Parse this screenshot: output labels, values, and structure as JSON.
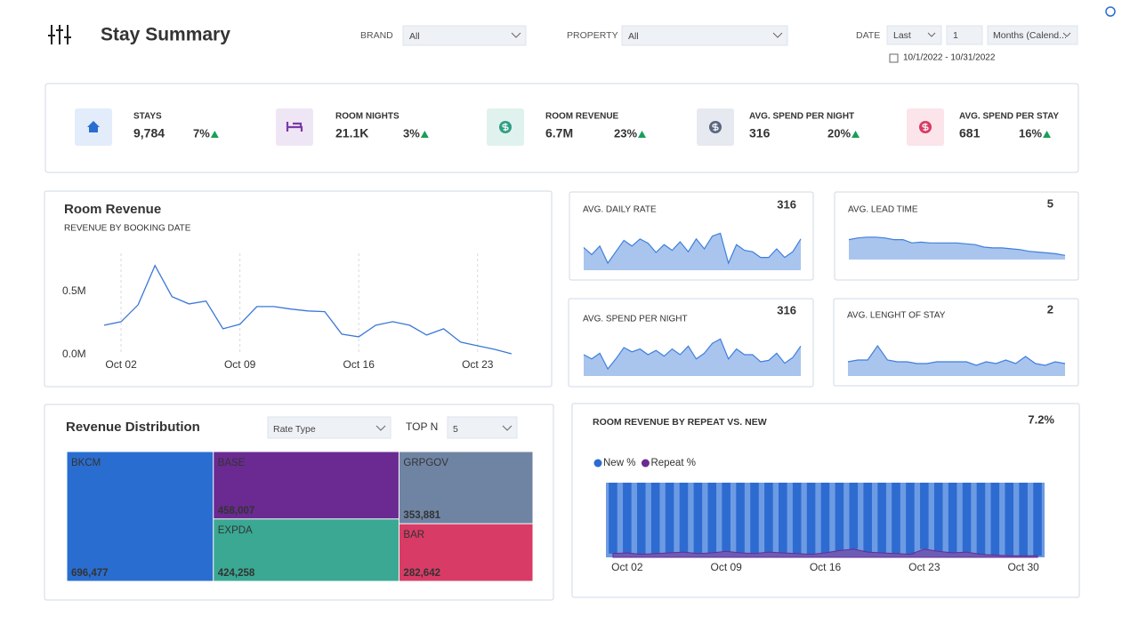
{
  "header": {
    "title": "Stay Summary"
  },
  "filters": {
    "brand": {
      "label": "BRAND",
      "value": "All"
    },
    "property": {
      "label": "PROPERTY",
      "value": "All"
    },
    "date": {
      "label": "DATE",
      "period": "Last",
      "count": 1,
      "unit": "Months (Calend...",
      "range": "10/1/2022 - 10/31/2022"
    }
  },
  "kpis": [
    {
      "label": "STAYS",
      "value": "9,784",
      "change": "7%"
    },
    {
      "label": "ROOM NIGHTS",
      "value": "21.1K",
      "change": "3%"
    },
    {
      "label": "ROOM REVENUE",
      "value": "6.7M",
      "change": "23%"
    },
    {
      "label": "AVG. SPEND PER NIGHT",
      "value": "316",
      "change": "20%"
    },
    {
      "label": "AVG. SPEND PER STAY",
      "value": "681",
      "change": "16%"
    }
  ],
  "chart_data": [
    {
      "type": "line",
      "title": "Room Revenue",
      "subtitle": "REVENUE BY BOOKING DATE",
      "color": "#3a78d6",
      "x_grid": true,
      "categories": [
        null,
        "Oct 02",
        null,
        null,
        null,
        null,
        null,
        null,
        "Oct 09",
        null,
        null,
        null,
        null,
        null,
        null,
        "Oct 16",
        null,
        null,
        null,
        null,
        null,
        null,
        "Oct 23",
        null,
        null
      ],
      "values": [
        232000,
        260000,
        394000,
        704000,
        458000,
        401000,
        423000,
        204000,
        240000,
        380000,
        380000,
        360000,
        345000,
        340000,
        162000,
        141000,
        232000,
        260000,
        232000,
        155000,
        204000,
        99000,
        70000,
        42000,
        7000
      ],
      "ylim": [
        0,
        800000
      ],
      "yticks": [
        {
          "value": 0,
          "label": "0.0M"
        },
        {
          "value": 500000,
          "label": "0.5M"
        }
      ]
    },
    {
      "type": "sparkline",
      "title": "AVG. DAILY RATE",
      "summary": 316,
      "color": "#3f7fdc",
      "fill": "#a9c5ee",
      "ylim": [
        150,
        450
      ],
      "values": [
        310,
        260,
        320,
        200,
        280,
        360,
        320,
        370,
        340,
        275,
        330,
        290,
        350,
        280,
        370,
        300,
        390,
        410,
        200,
        330,
        290,
        280,
        240,
        240,
        300,
        240,
        280,
        370
      ]
    },
    {
      "type": "sparkline",
      "title": "AVG. LEAD TIME",
      "summary": 5,
      "color": "#3f7fdc",
      "fill": "#a9c5ee",
      "ylim": [
        3,
        6
      ],
      "values": [
        5.4,
        5.6,
        5.7,
        5.7,
        5.6,
        5.4,
        5.4,
        5.0,
        5.1,
        5.0,
        5.0,
        5.0,
        5.0,
        4.9,
        4.8,
        4.5,
        4.4,
        4.4,
        4.3,
        4.2,
        4.0,
        3.9,
        3.8,
        3.7,
        3.5
      ]
    },
    {
      "type": "sparkline",
      "title": "AVG. SPEND PER NIGHT",
      "summary": 316,
      "color": "#3f7fdc",
      "fill": "#a9c5ee",
      "ylim": [
        150,
        450
      ],
      "values": [
        300,
        270,
        310,
        200,
        270,
        350,
        320,
        340,
        300,
        330,
        290,
        340,
        300,
        360,
        270,
        310,
        380,
        410,
        270,
        340,
        300,
        300,
        250,
        260,
        310,
        240,
        280,
        360
      ]
    },
    {
      "type": "sparkline",
      "title": "AVG. LENGHT OF STAY",
      "summary": 2,
      "color": "#3f7fdc",
      "fill": "#a9c5ee",
      "ylim": [
        1.5,
        3.5
      ],
      "values": [
        2.3,
        2.4,
        2.4,
        3.2,
        2.4,
        2.3,
        2.3,
        2.2,
        2.2,
        2.3,
        2.3,
        2.3,
        2.3,
        2.1,
        2.3,
        2.2,
        2.4,
        2.2,
        2.6,
        2.2,
        2.1,
        2.3,
        2.2
      ]
    },
    {
      "type": "treemap",
      "title": "Revenue Distribution",
      "controls": {
        "group": "Rate Type",
        "top_n_label": "TOP N",
        "top_n": 5
      },
      "categories": [
        "BKCM",
        "BASE",
        "EXPDA",
        "GRPGOV",
        "BAR"
      ],
      "values": [
        696477,
        458007,
        424258,
        353881,
        282642
      ],
      "value_labels": [
        "696,477",
        "458,007",
        "424,258",
        "353,881",
        "282,642"
      ],
      "colors": [
        "#2a6dd0",
        "#6a2a91",
        "#3aa893",
        "#6f84a3",
        "#d83b65"
      ]
    },
    {
      "type": "stacked_bar",
      "title": "ROOM REVENUE BY REPEAT VS. NEW",
      "summary": "7.2%",
      "ylim": [
        0,
        100
      ],
      "categories": [
        null,
        "Oct 02",
        null,
        null,
        null,
        null,
        null,
        null,
        "Oct 09",
        null,
        null,
        null,
        null,
        null,
        null,
        "Oct 16",
        null,
        null,
        null,
        null,
        null,
        null,
        "Oct 23",
        null,
        null,
        null,
        null,
        null,
        null,
        "Oct 30",
        null
      ],
      "series": [
        {
          "name": "New %",
          "color": "#2d6bd0",
          "values": [
            95,
            94,
            96,
            95,
            94,
            93,
            95,
            94,
            92,
            94,
            95,
            93,
            94,
            95,
            96,
            94,
            91,
            89,
            93,
            94,
            95,
            96,
            89,
            92,
            94,
            93,
            96,
            97,
            98,
            98,
            98
          ]
        },
        {
          "name": "Repeat %",
          "color": "#6a2a91",
          "values": [
            5,
            6,
            4,
            5,
            6,
            7,
            5,
            6,
            8,
            6,
            5,
            7,
            6,
            5,
            4,
            6,
            9,
            11,
            7,
            6,
            5,
            4,
            11,
            8,
            6,
            7,
            4,
            3,
            2,
            2,
            2
          ]
        }
      ]
    }
  ]
}
